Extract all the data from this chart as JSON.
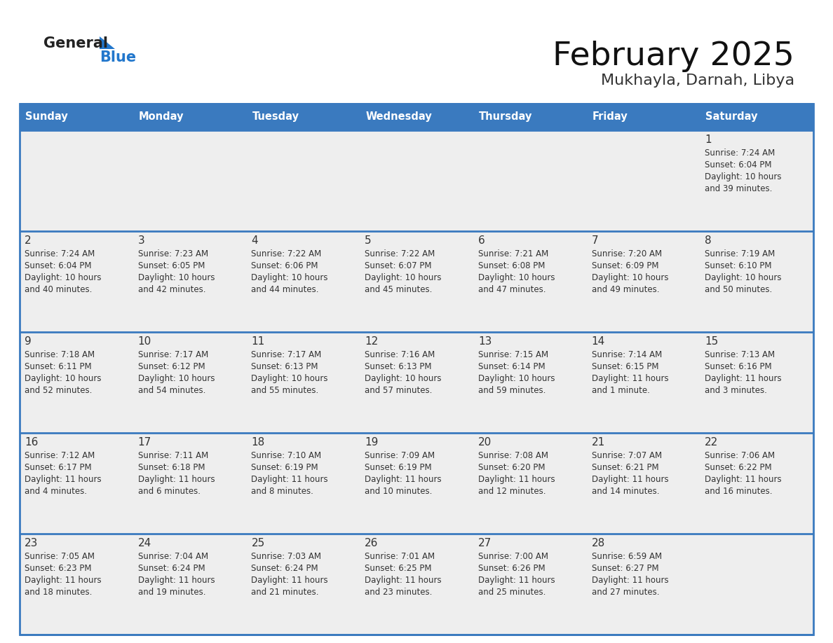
{
  "title": "February 2025",
  "subtitle": "Mukhayla, Darnah, Libya",
  "days_of_week": [
    "Sunday",
    "Monday",
    "Tuesday",
    "Wednesday",
    "Thursday",
    "Friday",
    "Saturday"
  ],
  "header_bg": "#3a7abf",
  "header_text": "#FFFFFF",
  "cell_bg": "#eeeeee",
  "row_border_color": "#3a7abf",
  "day_num_color": "#333333",
  "info_color": "#333333",
  "title_color": "#111111",
  "subtitle_color": "#333333",
  "generalblue_black": "#222222",
  "generalblue_blue": "#2277cc",
  "logo_triangle_color": "#2277cc",
  "weeks": [
    {
      "days": [
        {
          "day": null,
          "info": ""
        },
        {
          "day": null,
          "info": ""
        },
        {
          "day": null,
          "info": ""
        },
        {
          "day": null,
          "info": ""
        },
        {
          "day": null,
          "info": ""
        },
        {
          "day": null,
          "info": ""
        },
        {
          "day": 1,
          "info": "Sunrise: 7:24 AM\nSunset: 6:04 PM\nDaylight: 10 hours\nand 39 minutes."
        }
      ]
    },
    {
      "days": [
        {
          "day": 2,
          "info": "Sunrise: 7:24 AM\nSunset: 6:04 PM\nDaylight: 10 hours\nand 40 minutes."
        },
        {
          "day": 3,
          "info": "Sunrise: 7:23 AM\nSunset: 6:05 PM\nDaylight: 10 hours\nand 42 minutes."
        },
        {
          "day": 4,
          "info": "Sunrise: 7:22 AM\nSunset: 6:06 PM\nDaylight: 10 hours\nand 44 minutes."
        },
        {
          "day": 5,
          "info": "Sunrise: 7:22 AM\nSunset: 6:07 PM\nDaylight: 10 hours\nand 45 minutes."
        },
        {
          "day": 6,
          "info": "Sunrise: 7:21 AM\nSunset: 6:08 PM\nDaylight: 10 hours\nand 47 minutes."
        },
        {
          "day": 7,
          "info": "Sunrise: 7:20 AM\nSunset: 6:09 PM\nDaylight: 10 hours\nand 49 minutes."
        },
        {
          "day": 8,
          "info": "Sunrise: 7:19 AM\nSunset: 6:10 PM\nDaylight: 10 hours\nand 50 minutes."
        }
      ]
    },
    {
      "days": [
        {
          "day": 9,
          "info": "Sunrise: 7:18 AM\nSunset: 6:11 PM\nDaylight: 10 hours\nand 52 minutes."
        },
        {
          "day": 10,
          "info": "Sunrise: 7:17 AM\nSunset: 6:12 PM\nDaylight: 10 hours\nand 54 minutes."
        },
        {
          "day": 11,
          "info": "Sunrise: 7:17 AM\nSunset: 6:13 PM\nDaylight: 10 hours\nand 55 minutes."
        },
        {
          "day": 12,
          "info": "Sunrise: 7:16 AM\nSunset: 6:13 PM\nDaylight: 10 hours\nand 57 minutes."
        },
        {
          "day": 13,
          "info": "Sunrise: 7:15 AM\nSunset: 6:14 PM\nDaylight: 10 hours\nand 59 minutes."
        },
        {
          "day": 14,
          "info": "Sunrise: 7:14 AM\nSunset: 6:15 PM\nDaylight: 11 hours\nand 1 minute."
        },
        {
          "day": 15,
          "info": "Sunrise: 7:13 AM\nSunset: 6:16 PM\nDaylight: 11 hours\nand 3 minutes."
        }
      ]
    },
    {
      "days": [
        {
          "day": 16,
          "info": "Sunrise: 7:12 AM\nSunset: 6:17 PM\nDaylight: 11 hours\nand 4 minutes."
        },
        {
          "day": 17,
          "info": "Sunrise: 7:11 AM\nSunset: 6:18 PM\nDaylight: 11 hours\nand 6 minutes."
        },
        {
          "day": 18,
          "info": "Sunrise: 7:10 AM\nSunset: 6:19 PM\nDaylight: 11 hours\nand 8 minutes."
        },
        {
          "day": 19,
          "info": "Sunrise: 7:09 AM\nSunset: 6:19 PM\nDaylight: 11 hours\nand 10 minutes."
        },
        {
          "day": 20,
          "info": "Sunrise: 7:08 AM\nSunset: 6:20 PM\nDaylight: 11 hours\nand 12 minutes."
        },
        {
          "day": 21,
          "info": "Sunrise: 7:07 AM\nSunset: 6:21 PM\nDaylight: 11 hours\nand 14 minutes."
        },
        {
          "day": 22,
          "info": "Sunrise: 7:06 AM\nSunset: 6:22 PM\nDaylight: 11 hours\nand 16 minutes."
        }
      ]
    },
    {
      "days": [
        {
          "day": 23,
          "info": "Sunrise: 7:05 AM\nSunset: 6:23 PM\nDaylight: 11 hours\nand 18 minutes."
        },
        {
          "day": 24,
          "info": "Sunrise: 7:04 AM\nSunset: 6:24 PM\nDaylight: 11 hours\nand 19 minutes."
        },
        {
          "day": 25,
          "info": "Sunrise: 7:03 AM\nSunset: 6:24 PM\nDaylight: 11 hours\nand 21 minutes."
        },
        {
          "day": 26,
          "info": "Sunrise: 7:01 AM\nSunset: 6:25 PM\nDaylight: 11 hours\nand 23 minutes."
        },
        {
          "day": 27,
          "info": "Sunrise: 7:00 AM\nSunset: 6:26 PM\nDaylight: 11 hours\nand 25 minutes."
        },
        {
          "day": 28,
          "info": "Sunrise: 6:59 AM\nSunset: 6:27 PM\nDaylight: 11 hours\nand 27 minutes."
        },
        {
          "day": null,
          "info": ""
        }
      ]
    }
  ]
}
